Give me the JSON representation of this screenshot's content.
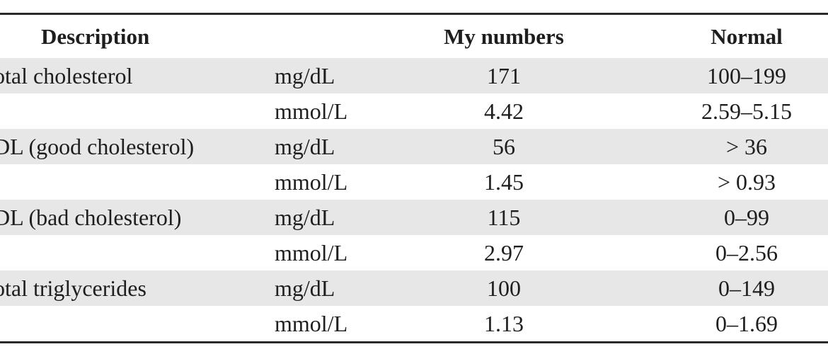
{
  "table": {
    "headers": {
      "description": "Description",
      "unit": "",
      "my_numbers": "My numbers",
      "normal": "Normal"
    },
    "rows": [
      {
        "description": "otal cholesterol",
        "unit": "mg/dL",
        "value": "171",
        "normal": "100–199",
        "shaded": true
      },
      {
        "description": "",
        "unit": "mmol/L",
        "value": "4.42",
        "normal": "2.59–5.15",
        "shaded": false
      },
      {
        "description": "DL (good cholesterol)",
        "unit": "mg/dL",
        "value": "56",
        "normal": "> 36",
        "shaded": true
      },
      {
        "description": "",
        "unit": "mmol/L",
        "value": "1.45",
        "normal": "> 0.93",
        "shaded": false
      },
      {
        "description": "DL (bad cholesterol)",
        "unit": "mg/dL",
        "value": "115",
        "normal": "0–99",
        "shaded": true
      },
      {
        "description": "",
        "unit": "mmol/L",
        "value": "2.97",
        "normal": "0–2.56",
        "shaded": false
      },
      {
        "description": "otal triglycerides",
        "unit": "mg/dL",
        "value": "100",
        "normal": "0–149",
        "shaded": true
      },
      {
        "description": "",
        "unit": "mmol/L",
        "value": "1.13",
        "normal": "0–1.69",
        "shaded": false
      }
    ]
  }
}
